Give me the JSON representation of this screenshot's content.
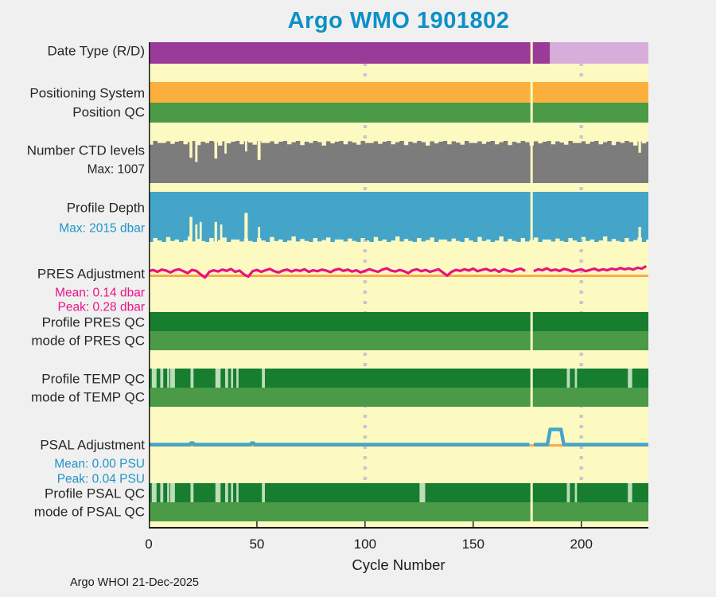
{
  "title": "Argo WMO 1901802",
  "footer": "Argo WHOI 21-Dec-2025",
  "xaxis": {
    "label": "Cycle Number",
    "ticks": [
      "0",
      "50",
      "100",
      "150",
      "200"
    ],
    "tick_values": [
      0,
      50,
      100,
      150,
      200
    ],
    "max_cycle": 231,
    "gridline_cycles": [
      100,
      200
    ]
  },
  "missing_cycle": 177,
  "colors": {
    "page_bg": "#F0F0F0",
    "plot_bg": "#FCFAC1",
    "purple_dark": "#9A3B99",
    "purple_light": "#D7AEDA",
    "orange": "#FBB03D",
    "green_mid": "#4A9A47",
    "green_dark": "#177D2F",
    "green_pale": "#BCDDB8",
    "gray": "#7C7C7C",
    "blue": "#44A5C9",
    "pink": "#E8127F",
    "orange_line": "#FCA94F",
    "grid_dot": "#C8C8CD",
    "axis": "#1A1A1A",
    "title": "#0D90C6",
    "label": "#262626",
    "blue_text": "#1E95C9",
    "pink_text": "#EB1387"
  },
  "edge_jitter": [
    0.05,
    0.01,
    0.07,
    0.02,
    0,
    0.08,
    0.03,
    0,
    0.1,
    0.02,
    0.05,
    0,
    0.03,
    0.11,
    0.01,
    0.06,
    0.02,
    0,
    0.08,
    0.01,
    0.04,
    0.09,
    0,
    0.05
  ],
  "chart_data": [
    {
      "id": "date_type",
      "type": "band",
      "label": "Date Type (R/D)",
      "segments": [
        {
          "from": 0,
          "to": 185.5,
          "color": "purple_dark",
          "value": "R"
        },
        {
          "from": 185.5,
          "to": 231,
          "color": "purple_light",
          "value": "D"
        }
      ]
    },
    {
      "id": "positioning_system",
      "type": "band",
      "label": "Positioning System",
      "segments": [
        {
          "from": 0,
          "to": 231,
          "color": "orange",
          "value": ""
        }
      ]
    },
    {
      "id": "position_qc",
      "type": "band",
      "label": "Position QC",
      "segments": [
        {
          "from": 0,
          "to": 231,
          "color": "green_mid",
          "value": ""
        }
      ]
    },
    {
      "id": "ctd_levels",
      "type": "fill",
      "anchor": "bottom",
      "label": "Number CTD levels",
      "sublabel": "Max: 1007",
      "max_value": 1007,
      "color": "gray",
      "notches": [
        {
          "c": 19.5,
          "d": 0.4,
          "w": 1.3
        },
        {
          "c": 22,
          "d": 0.5,
          "w": 1.1
        },
        {
          "c": 31,
          "d": 0.42,
          "w": 1.3
        },
        {
          "c": 35.5,
          "d": 0.3,
          "w": 1.0
        },
        {
          "c": 45,
          "d": 0.25,
          "w": 1.0
        },
        {
          "c": 51,
          "d": 0.45,
          "w": 1.4
        },
        {
          "c": 227,
          "d": 0.28,
          "w": 1.2
        }
      ]
    },
    {
      "id": "profile_depth",
      "type": "fill",
      "anchor": "top",
      "label": "Profile Depth",
      "sublabel": "Max: 2015 dbar",
      "max_value_dbar": 2015,
      "color": "blue",
      "notches": [
        {
          "c": 19.5,
          "d": 0.5,
          "w": 1.3
        },
        {
          "c": 22,
          "d": 0.35,
          "w": 1.0
        },
        {
          "c": 24,
          "d": 0.4,
          "w": 1.0
        },
        {
          "c": 31,
          "d": 0.4,
          "w": 1.2
        },
        {
          "c": 33.5,
          "d": 0.35,
          "w": 1.0
        },
        {
          "c": 45,
          "d": 0.58,
          "w": 1.5
        },
        {
          "c": 51,
          "d": 0.3,
          "w": 1.0
        },
        {
          "c": 227,
          "d": 0.3,
          "w": 1.2
        }
      ]
    },
    {
      "id": "pres_adjustment",
      "type": "line",
      "label": "PRES Adjustment",
      "sublabel_mean": "Mean: 0.14 dbar",
      "sublabel_peak": "Peak: 0.28 dbar",
      "unit": "dbar",
      "mean": 0.14,
      "peak": 0.28,
      "color": "pink",
      "zero_line_color": "orange_line",
      "values_step": 2,
      "values": [
        0.12,
        0.16,
        0.1,
        0.17,
        0.14,
        0.08,
        0.15,
        0.18,
        0.12,
        0.06,
        0.16,
        0.13,
        0.02,
        -0.08,
        0.1,
        0.15,
        0.11,
        0.17,
        0.13,
        0.19,
        0.1,
        0.14,
        0.02,
        -0.05,
        0.12,
        0.16,
        0.1,
        0.15,
        0.19,
        0.12,
        0.08,
        0.14,
        0.17,
        0.11,
        0.16,
        0.13,
        0.18,
        0.1,
        0.15,
        0.12,
        0.17,
        0.14,
        0.09,
        0.16,
        0.19,
        0.13,
        0.17,
        0.11,
        0.15,
        0.08,
        0.13,
        0.18,
        0.14,
        0.1,
        0.17,
        0.21,
        0.14,
        0.11,
        0.16,
        0.12,
        0.06,
        0.15,
        0.18,
        0.12,
        0.16,
        0.1,
        0.14,
        0.18,
        0.08,
        -0.02,
        0.1,
        0.16,
        0.13,
        0.18,
        0.14,
        0.2,
        0.12,
        0.16,
        0.19,
        0.13,
        0.17,
        0.1,
        0.18,
        0.14,
        0.11,
        0.17,
        0.2,
        0.13,
        0.16,
        0.12,
        0.18,
        0.15,
        0.21,
        0.14,
        0.17,
        0.13,
        0.19,
        0.16,
        0.11,
        0.15,
        0.18,
        0.12,
        0.16,
        0.2,
        0.14,
        0.18,
        0.15,
        0.2,
        0.17,
        0.22,
        0.18,
        0.21,
        0.17,
        0.23,
        0.2,
        0.28
      ]
    },
    {
      "id": "profile_pres_qc",
      "type": "band",
      "label": "Profile PRES QC",
      "segments": [
        {
          "from": 0,
          "to": 231,
          "color": "green_dark",
          "value": ""
        }
      ],
      "marks": []
    },
    {
      "id": "mode_pres_qc",
      "type": "band",
      "label": "mode of PRES QC",
      "segments": [
        {
          "from": 0,
          "to": 231,
          "color": "green_mid",
          "value": ""
        }
      ]
    },
    {
      "id": "profile_temp_qc",
      "type": "band",
      "label": "Profile TEMP QC",
      "segments": [
        {
          "from": 0,
          "to": 231,
          "color": "green_dark",
          "value": ""
        }
      ],
      "marks": [
        {
          "c": 2.5,
          "w": 2.2
        },
        {
          "c": 6,
          "w": 1.4
        },
        {
          "c": 9,
          "w": 1.0
        },
        {
          "c": 11,
          "w": 2.2
        },
        {
          "c": 20,
          "w": 1.4
        },
        {
          "c": 32,
          "w": 2.4
        },
        {
          "c": 36,
          "w": 1.4
        },
        {
          "c": 38.5,
          "w": 1.0
        },
        {
          "c": 41,
          "w": 1.0
        },
        {
          "c": 53,
          "w": 1.4
        },
        {
          "c": 194,
          "w": 1.4
        },
        {
          "c": 197.5,
          "w": 1.0
        },
        {
          "c": 222.5,
          "w": 2.0
        }
      ]
    },
    {
      "id": "mode_temp_qc",
      "type": "band",
      "label": "mode of TEMP QC",
      "segments": [
        {
          "from": 0,
          "to": 231,
          "color": "green_mid",
          "value": ""
        }
      ]
    },
    {
      "id": "psal_adjustment",
      "type": "line",
      "label": "PSAL Adjustment",
      "sublabel_mean": "Mean: 0.00 PSU",
      "sublabel_peak": "Peak: 0.04 PSU",
      "unit": "PSU",
      "mean": 0.0,
      "peak": 0.04,
      "color": "blue",
      "zero_line_color": "orange_line",
      "segments_points": [
        [
          [
            0,
            0
          ],
          [
            19,
            0
          ],
          [
            19.5,
            0.004
          ],
          [
            20.5,
            0.004
          ],
          [
            21,
            0
          ],
          [
            47,
            0
          ],
          [
            47.5,
            0.004
          ],
          [
            48.5,
            0.004
          ],
          [
            49,
            0
          ],
          [
            176,
            0
          ]
        ],
        [
          [
            178,
            0
          ],
          [
            184.3,
            0
          ],
          [
            185.6,
            0.04
          ],
          [
            190.6,
            0.04
          ],
          [
            191.9,
            0
          ],
          [
            231,
            0
          ]
        ]
      ]
    },
    {
      "id": "profile_psal_qc",
      "type": "band",
      "label": "Profile PSAL QC",
      "segments": [
        {
          "from": 0,
          "to": 231,
          "color": "green_dark",
          "value": ""
        }
      ],
      "marks": [
        {
          "c": 2.5,
          "w": 2.2
        },
        {
          "c": 6,
          "w": 1.4
        },
        {
          "c": 9,
          "w": 1.0
        },
        {
          "c": 11,
          "w": 2.2
        },
        {
          "c": 20,
          "w": 1.4
        },
        {
          "c": 32,
          "w": 2.4
        },
        {
          "c": 36,
          "w": 1.4
        },
        {
          "c": 38.5,
          "w": 1.0
        },
        {
          "c": 41,
          "w": 1.0
        },
        {
          "c": 53,
          "w": 1.4
        },
        {
          "c": 126.5,
          "w": 2.6
        },
        {
          "c": 194,
          "w": 1.4
        },
        {
          "c": 197.5,
          "w": 1.0
        },
        {
          "c": 222.5,
          "w": 2.0
        }
      ]
    },
    {
      "id": "mode_psal_qc",
      "type": "band",
      "label": "mode of PSAL QC",
      "segments": [
        {
          "from": 0,
          "to": 231,
          "color": "green_mid",
          "value": ""
        }
      ]
    }
  ]
}
